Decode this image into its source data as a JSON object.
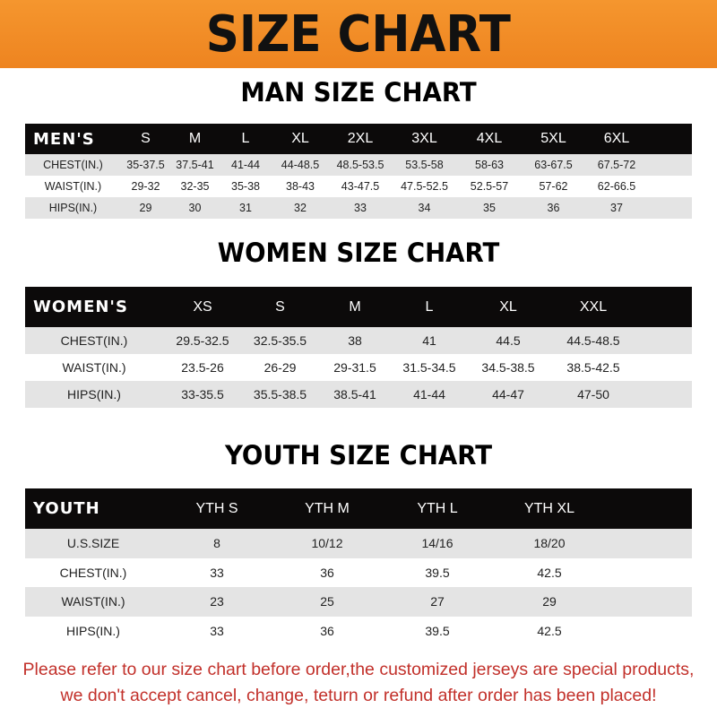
{
  "banner": {
    "title": "SIZE CHART",
    "color": "#f08a24"
  },
  "men": {
    "title": "MAN SIZE CHART",
    "header": [
      "MEN'S",
      "S",
      "M",
      "L",
      "XL",
      "2XL",
      "3XL",
      "4XL",
      "5XL",
      "6XL"
    ],
    "rows": [
      [
        "CHEST(IN.)",
        "35-37.5",
        "37.5-41",
        "41-44",
        "44-48.5",
        "48.5-53.5",
        "53.5-58",
        "58-63",
        "63-67.5",
        "67.5-72"
      ],
      [
        "WAIST(IN.)",
        "29-32",
        "32-35",
        "35-38",
        "38-43",
        "43-47.5",
        "47.5-52.5",
        "52.5-57",
        "57-62",
        "62-66.5"
      ],
      [
        "HIPS(IN.)",
        "29",
        "30",
        "31",
        "32",
        "33",
        "34",
        "35",
        "36",
        "37"
      ]
    ]
  },
  "women": {
    "title": "WOMEN SIZE CHART",
    "header": [
      "WOMEN'S",
      "XS",
      "S",
      "M",
      "L",
      "XL",
      "XXL"
    ],
    "rows": [
      [
        "CHEST(IN.)",
        "29.5-32.5",
        "32.5-35.5",
        "38",
        "41",
        "44.5",
        "44.5-48.5"
      ],
      [
        "WAIST(IN.)",
        "23.5-26",
        "26-29",
        "29-31.5",
        "31.5-34.5",
        "34.5-38.5",
        "38.5-42.5"
      ],
      [
        "HIPS(IN.)",
        "33-35.5",
        "35.5-38.5",
        "38.5-41",
        "41-44",
        "44-47",
        "47-50"
      ]
    ]
  },
  "youth": {
    "title": "YOUTH SIZE CHART",
    "header": [
      "YOUTH",
      "YTH S",
      "YTH M",
      "YTH L",
      "YTH XL"
    ],
    "rows": [
      [
        "U.S.SIZE",
        "8",
        "10/12",
        "14/16",
        "18/20"
      ],
      [
        "CHEST(IN.)",
        "33",
        "36",
        "39.5",
        "42.5"
      ],
      [
        "WAIST(IN.)",
        "23",
        "25",
        "27",
        "29"
      ],
      [
        "HIPS(IN.)",
        "33",
        "36",
        "39.5",
        "42.5"
      ]
    ]
  },
  "notice": {
    "line1": "Please refer to our size chart before order,the customized jerseys are special products,",
    "line2": "we don't accept cancel, change, teturn or refund after order has been placed!",
    "color": "#c2302a"
  }
}
